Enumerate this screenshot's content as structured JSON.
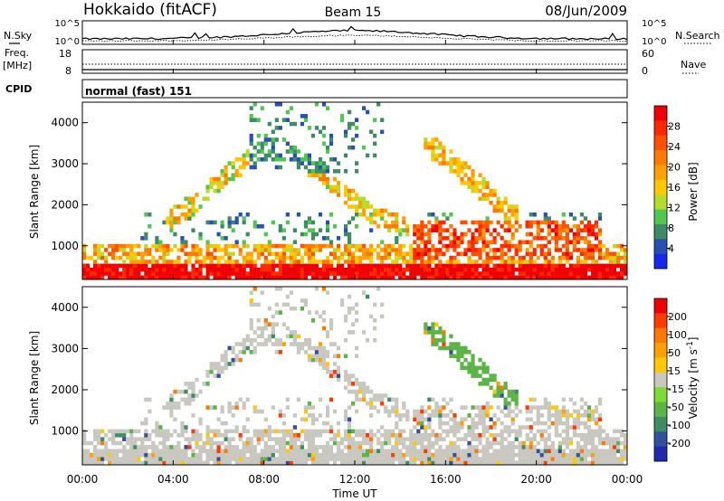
{
  "header": {
    "title": "Hokkaido (fitACF)",
    "beam": "Beam 15",
    "date": "08/Jun/2009"
  },
  "noise_panel": {
    "left_label": "N.Sky",
    "right_label": "N.Search",
    "tick_top": "10^5",
    "tick_bottom": "10^0",
    "right_tick_top": "10^5",
    "right_tick_bottom": "10^0"
  },
  "freq_panel": {
    "left_label_1": "Freq.",
    "left_label_2": "[MHz]",
    "tick_top": "18",
    "tick_bottom": "8",
    "right_label": "Nave",
    "right_tick_top": "60",
    "right_tick_bottom": "0"
  },
  "cpid_panel": {
    "label": "CPID",
    "mode": "normal (fast) 151"
  },
  "chart_data": [
    {
      "type": "heatmap",
      "quantity": "power",
      "ylabel": "Slant Range [km]",
      "ylim": [
        180,
        4500
      ],
      "yticks": [
        "1000",
        "2000",
        "3000",
        "4000"
      ],
      "colorbar_label": "Power [dB]",
      "colorbar_ticks": [
        "28",
        "24",
        "20",
        "16",
        "12",
        "8",
        "4"
      ],
      "colorbar_range": [
        0,
        32
      ],
      "colors": [
        "#1428f0",
        "#2850b4",
        "#3c8c64",
        "#50c850",
        "#b4dc28",
        "#ffc800",
        "#ffa000",
        "#ff7800",
        "#ff5000",
        "#ff2800",
        "#f00000"
      ]
    },
    {
      "type": "heatmap",
      "quantity": "velocity",
      "ylabel": "Slant Range [km]",
      "ylim": [
        180,
        4500
      ],
      "yticks": [
        "1000",
        "2000",
        "3000",
        "4000"
      ],
      "colorbar_label": "Velocity [m s^-1]",
      "colorbar_ticks": [
        "200",
        "100",
        "50",
        "15",
        "-15",
        "-50",
        "-100",
        "-200"
      ],
      "colors": [
        "#1e28b4",
        "#3250a0",
        "#3c8c64",
        "#5ab446",
        "#7ddc32",
        "#c8c8c0",
        "#ffc800",
        "#ffa000",
        "#ff7800",
        "#ff3c00",
        "#f00000"
      ]
    }
  ],
  "time_axis": {
    "xlabel": "Time UT",
    "ticks": [
      "00:00",
      "04:00",
      "08:00",
      "12:00",
      "16:00",
      "20:00",
      "00:00"
    ]
  }
}
